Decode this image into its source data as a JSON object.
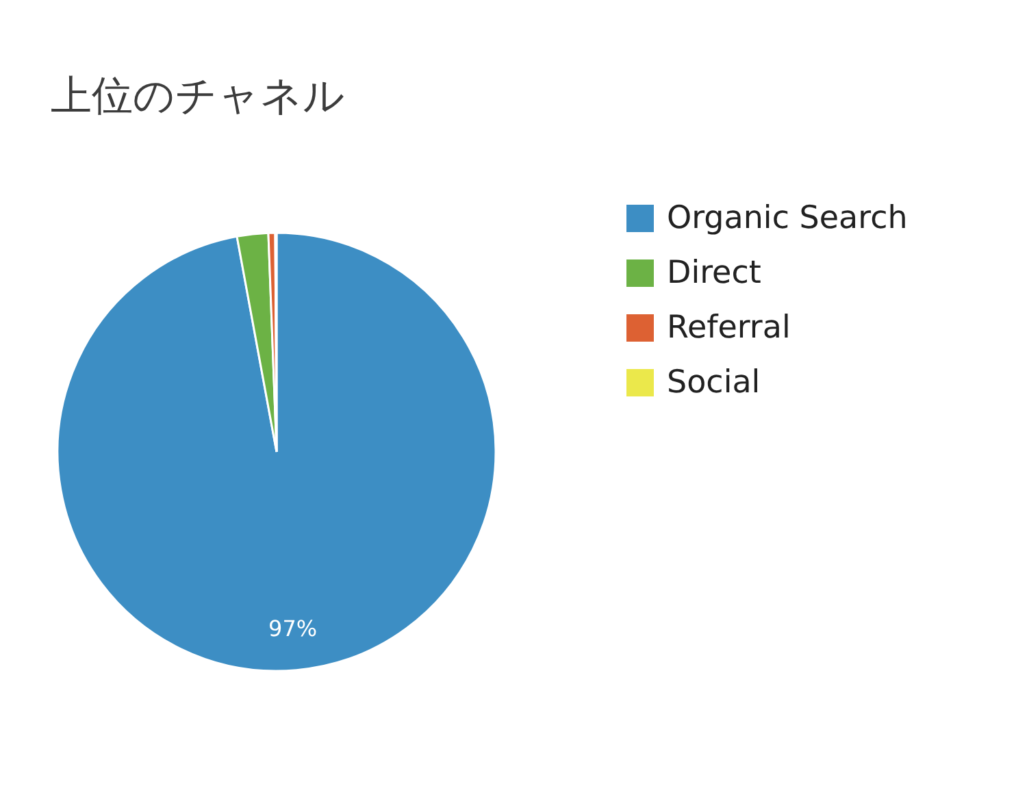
{
  "chart_data": {
    "type": "pie",
    "title": "上位のチャネル",
    "categories": [
      "Organic Search",
      "Direct",
      "Referral",
      "Social"
    ],
    "values": [
      97.1,
      2.3,
      0.5,
      0.1
    ],
    "colors": [
      "#3d8ec4",
      "#6cb245",
      "#dd6133",
      "#ebe84b"
    ],
    "value_labels": [
      "97%",
      null,
      null,
      null
    ],
    "legend": "right"
  }
}
